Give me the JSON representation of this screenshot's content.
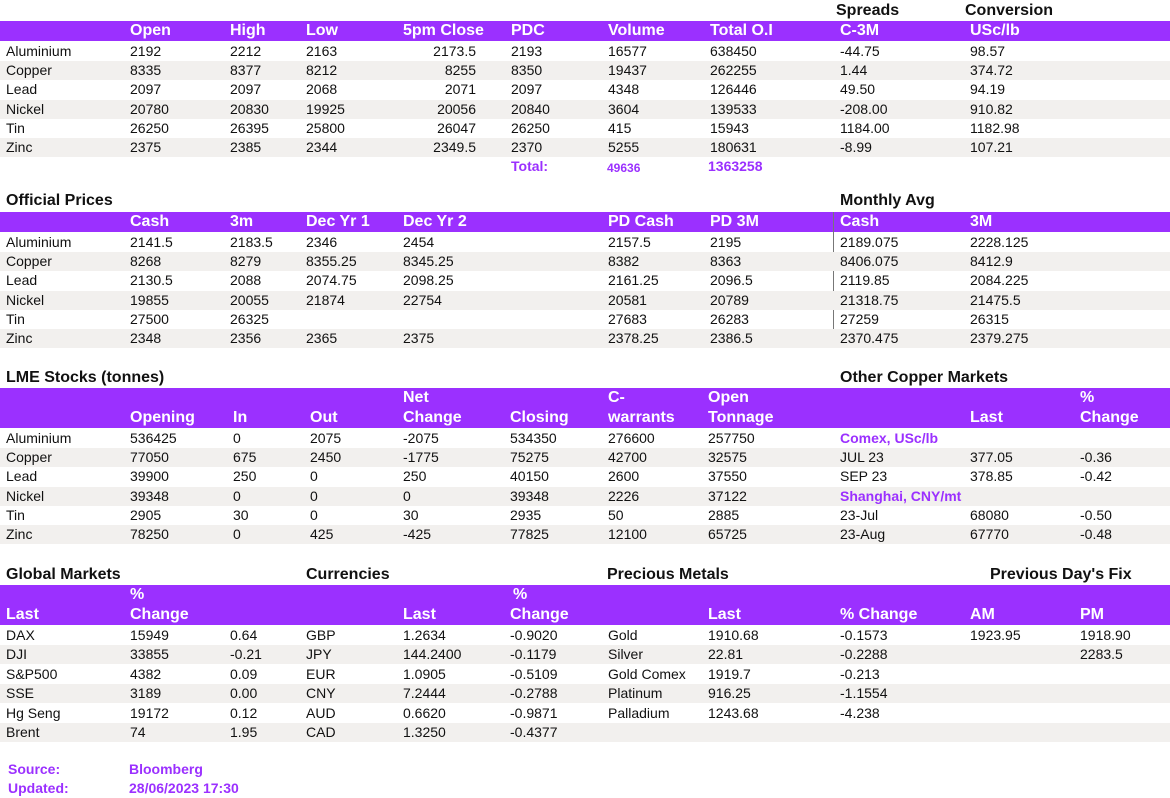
{
  "lme": {
    "top_labels": {
      "spreads": "Spreads",
      "conversion": "Conversion"
    },
    "headers": [
      "Open",
      "High",
      "Low",
      "5pm Close",
      "PDC",
      "Volume",
      "Total O.I",
      "C-3M",
      "USc/lb"
    ],
    "rows": [
      {
        "metal": "Aluminium",
        "open": "2192",
        "high": "2212",
        "low": "2163",
        "close": "2173.5",
        "pdc": "2193",
        "volume": "16577",
        "oi": "638450",
        "c3m": "-44.75",
        "usc": "98.57"
      },
      {
        "metal": "Copper",
        "open": "8335",
        "high": "8377",
        "low": "8212",
        "close": "8255",
        "pdc": "8350",
        "volume": "19437",
        "oi": "262255",
        "c3m": "1.44",
        "usc": "374.72"
      },
      {
        "metal": "Lead",
        "open": "2097",
        "high": "2097",
        "low": "2068",
        "close": "2071",
        "pdc": "2097",
        "volume": "4348",
        "oi": "126446",
        "c3m": "49.50",
        "usc": "94.19"
      },
      {
        "metal": "Nickel",
        "open": "20780",
        "high": "20830",
        "low": "19925",
        "close": "20056",
        "pdc": "20840",
        "volume": "3604",
        "oi": "139533",
        "c3m": "-208.00",
        "usc": "910.82"
      },
      {
        "metal": "Tin",
        "open": "26250",
        "high": "26395",
        "low": "25800",
        "close": "26047",
        "pdc": "26250",
        "volume": "415",
        "oi": "15943",
        "c3m": "1184.00",
        "usc": "1182.98"
      },
      {
        "metal": "Zinc",
        "open": "2375",
        "high": "2385",
        "low": "2344",
        "close": "2349.5",
        "pdc": "2370",
        "volume": "5255",
        "oi": "180631",
        "c3m": "-8.99",
        "usc": "107.21"
      }
    ],
    "total": {
      "label": "Total:",
      "volume": "49636",
      "oi": "1363258"
    }
  },
  "official": {
    "title": "Official Prices",
    "monthly_title": "Monthly Avg",
    "headers": [
      "Cash",
      "3m",
      "Dec Yr 1",
      "Dec Yr 2",
      "PD Cash",
      "PD 3M",
      "Cash",
      "3M"
    ],
    "rows": [
      {
        "metal": "Aluminium",
        "cash": "2141.5",
        "m3": "2183.5",
        "dy1": "2346",
        "dy2": "2454",
        "pdcash": "2157.5",
        "pd3m": "2195",
        "mcash": "2189.075",
        "m3m": "2228.125"
      },
      {
        "metal": "Copper",
        "cash": "8268",
        "m3": "8279",
        "dy1": "8355.25",
        "dy2": "8345.25",
        "pdcash": "8382",
        "pd3m": "8363",
        "mcash": "8406.075",
        "m3m": "8412.9"
      },
      {
        "metal": "Lead",
        "cash": "2130.5",
        "m3": "2088",
        "dy1": "2074.75",
        "dy2": "2098.25",
        "pdcash": "2161.25",
        "pd3m": "2096.5",
        "mcash": "2119.85",
        "m3m": "2084.225"
      },
      {
        "metal": "Nickel",
        "cash": "19855",
        "m3": "20055",
        "dy1": "21874",
        "dy2": "22754",
        "pdcash": "20581",
        "pd3m": "20789",
        "mcash": "21318.75",
        "m3m": "21475.5"
      },
      {
        "metal": "Tin",
        "cash": "27500",
        "m3": "26325",
        "dy1": "",
        "dy2": "",
        "pdcash": "27683",
        "pd3m": "26283",
        "mcash": "27259",
        "m3m": "26315"
      },
      {
        "metal": "Zinc",
        "cash": "2348",
        "m3": "2356",
        "dy1": "2365",
        "dy2": "2375",
        "pdcash": "2378.25",
        "pd3m": "2386.5",
        "mcash": "2370.475",
        "m3m": "2379.275"
      }
    ]
  },
  "stocks": {
    "title": "LME Stocks (tonnes)",
    "headers_top": {
      "net": "Net",
      "cw": "C-",
      "open": "Open"
    },
    "headers": {
      "opening": "Opening",
      "in": "In",
      "out": "Out",
      "net": "Change",
      "closing": "Closing",
      "cw": "warrants",
      "open": "Tonnage"
    },
    "rows": [
      {
        "metal": "Aluminium",
        "opening": "536425",
        "in": "0",
        "out": "2075",
        "net": "-2075",
        "closing": "534350",
        "cw": "276600",
        "open": "257750"
      },
      {
        "metal": "Copper",
        "opening": "77050",
        "in": "675",
        "out": "2450",
        "net": "-1775",
        "closing": "75275",
        "cw": "42700",
        "open": "32575"
      },
      {
        "metal": "Lead",
        "opening": "39900",
        "in": "250",
        "out": "0",
        "net": "250",
        "closing": "40150",
        "cw": "2600",
        "open": "37550"
      },
      {
        "metal": "Nickel",
        "opening": "39348",
        "in": "0",
        "out": "0",
        "net": "0",
        "closing": "39348",
        "cw": "2226",
        "open": "37122"
      },
      {
        "metal": "Tin",
        "opening": "2905",
        "in": "30",
        "out": "0",
        "net": "30",
        "closing": "2935",
        "cw": "50",
        "open": "2885"
      },
      {
        "metal": "Zinc",
        "opening": "78250",
        "in": "0",
        "out": "425",
        "net": "-425",
        "closing": "77825",
        "cw": "12100",
        "open": "65725"
      }
    ]
  },
  "copper_markets": {
    "title": "Other Copper Markets",
    "header_last": "Last",
    "header_pct_top": "%",
    "header_pct": "Change",
    "comex_label": "Comex, USc/lb",
    "comex": [
      {
        "name": "JUL 23",
        "last": "377.05",
        "chg": "-0.36"
      },
      {
        "name": "SEP 23",
        "last": "378.85",
        "chg": "-0.42"
      }
    ],
    "shanghai_label": "Shanghai, CNY/mt",
    "shanghai": [
      {
        "name": "23-Jul",
        "last": "68080",
        "chg": "-0.50"
      },
      {
        "name": "23-Aug",
        "last": "67770",
        "chg": "-0.48"
      }
    ]
  },
  "global": {
    "title": "Global Markets",
    "pct_top": "%",
    "last": "Last",
    "change": "Change",
    "rows": [
      {
        "name": "DAX",
        "last": "15949",
        "chg": "0.64"
      },
      {
        "name": "DJI",
        "last": "33855",
        "chg": "-0.21"
      },
      {
        "name": "S&P500",
        "last": "4382",
        "chg": "0.09"
      },
      {
        "name": "SSE",
        "last": "3189",
        "chg": "0.00"
      },
      {
        "name": "Hg Seng",
        "last": "19172",
        "chg": "0.12"
      },
      {
        "name": "Brent",
        "last": "74",
        "chg": "1.95"
      }
    ]
  },
  "currencies": {
    "title": "Currencies",
    "pct_top": "%",
    "last": "Last",
    "change": "Change",
    "rows": [
      {
        "name": "GBP",
        "last": "1.2634",
        "chg": "-0.9020"
      },
      {
        "name": "JPY",
        "last": "144.2400",
        "chg": "-0.1179"
      },
      {
        "name": "EUR",
        "last": "1.0905",
        "chg": "-0.5109"
      },
      {
        "name": "CNY",
        "last": "7.2444",
        "chg": "-0.2788"
      },
      {
        "name": "AUD",
        "last": "0.6620",
        "chg": "-0.9871"
      },
      {
        "name": "CAD",
        "last": "1.3250",
        "chg": "-0.4377"
      }
    ]
  },
  "precious": {
    "title": "Precious Metals",
    "fix_title": "Previous Day's Fix",
    "last": "Last",
    "change": "% Change",
    "am": "AM",
    "pm": "PM",
    "rows": [
      {
        "name": "Gold",
        "last": "1910.68",
        "chg": "-0.1573",
        "am": "1923.95",
        "pm": "1918.90"
      },
      {
        "name": "Silver",
        "last": "22.81",
        "chg": "-0.2288",
        "am": "",
        "pm": "2283.5"
      },
      {
        "name": "Gold Comex",
        "last": "1919.7",
        "chg": "-0.213",
        "am": "",
        "pm": ""
      },
      {
        "name": "Platinum",
        "last": "916.25",
        "chg": "-1.1554",
        "am": "",
        "pm": ""
      },
      {
        "name": "Palladium",
        "last": "1243.68",
        "chg": "-4.238",
        "am": "",
        "pm": ""
      }
    ]
  },
  "footer": {
    "source_label": "Source:",
    "source_value": "Bloomberg",
    "updated_label": "Updated:",
    "updated_value": "28/06/2023 17:30"
  }
}
